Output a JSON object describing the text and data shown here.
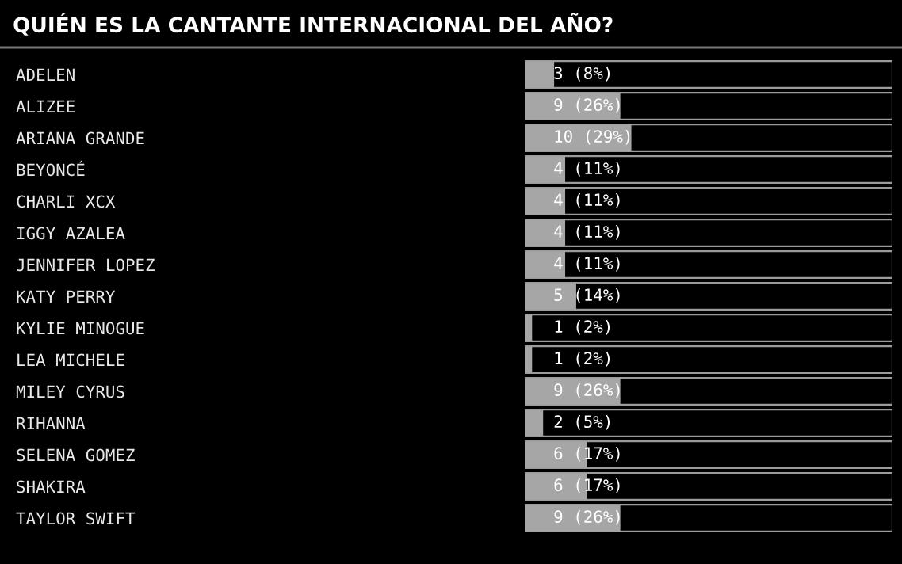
{
  "chart_data": {
    "type": "bar",
    "orientation": "horizontal",
    "title": "QUIÉN ES LA CANTANTE INTERNACIONAL DEL AÑO?",
    "categories": [
      "ADELEN",
      "ALIZEE",
      "ARIANA GRANDE",
      "BEYONCÉ",
      "CHARLI XCX",
      "IGGY AZALEA",
      "JENNIFER LOPEZ",
      "KATY PERRY",
      "KYLIE MINOGUE",
      "LEA MICHELE",
      "MILEY CYRUS",
      "RIHANNA",
      "SELENA GOMEZ",
      "SHAKIRA",
      "TAYLOR SWIFT"
    ],
    "values": [
      8,
      26,
      29,
      11,
      11,
      11,
      11,
      14,
      2,
      2,
      26,
      5,
      17,
      17,
      26
    ],
    "value_labels": [
      "3 (8%)",
      "9 (26%)",
      "10 (29%)",
      "4 (11%)",
      "4 (11%)",
      "4 (11%)",
      "4 (11%)",
      "5 (14%)",
      "1 (2%)",
      "1 (2%)",
      "9 (26%)",
      "2 (5%)",
      "6 (17%)",
      "6 (17%)",
      "9 (26%)"
    ],
    "color": "#a6a6a6",
    "xlim": [
      0,
      100
    ],
    "tick_labels": "y",
    "grid": false,
    "legend": false
  }
}
